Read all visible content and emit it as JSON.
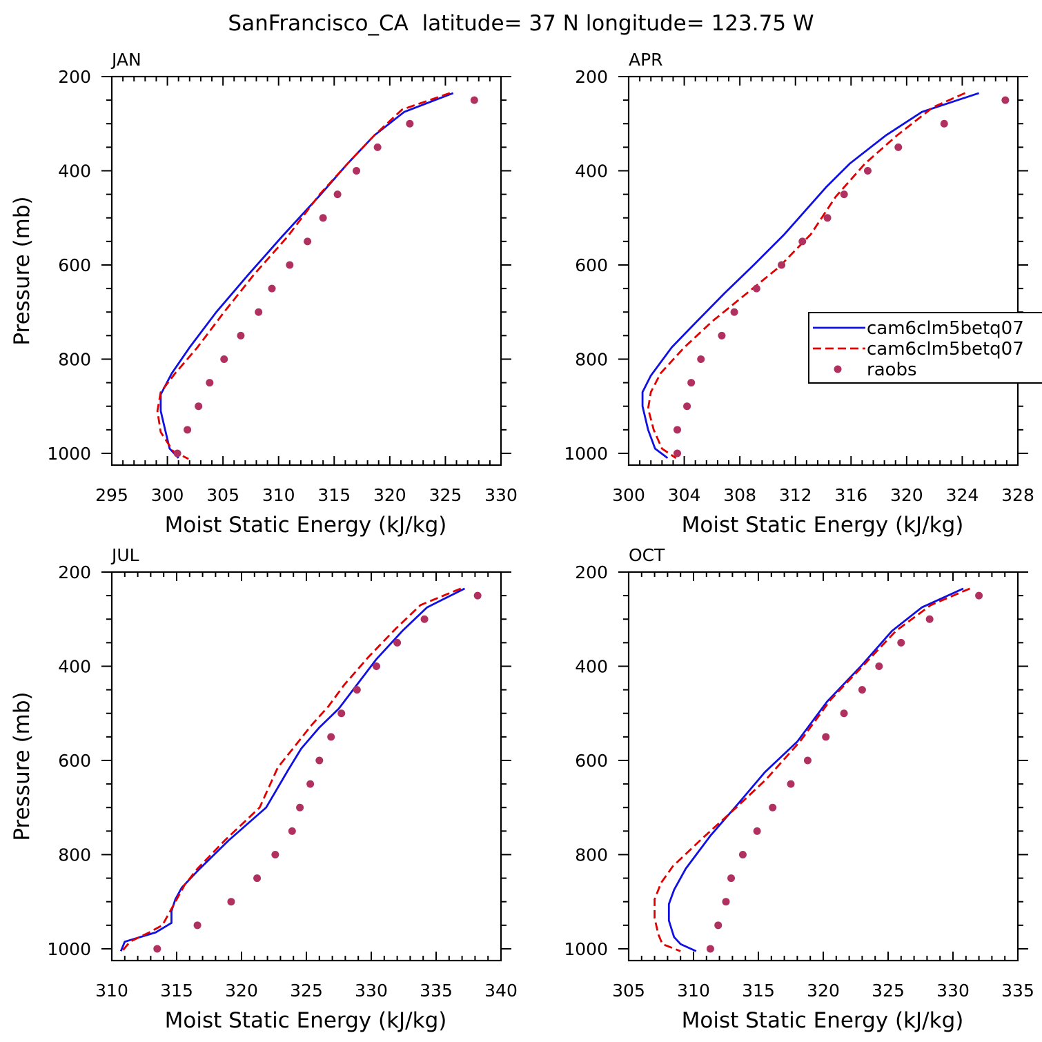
{
  "title": "SanFrancisco_CA  latitude= 37 N longitude= 123.75 W",
  "legend": {
    "entries": [
      {
        "label": "cam6clm5betq07",
        "color": "#1010e0",
        "style": "solid"
      },
      {
        "label": "cam6clm5betq07",
        "color": "#e00000",
        "style": "dashed"
      },
      {
        "label": "raobs",
        "color": "#b03060",
        "style": "dot"
      }
    ]
  },
  "chart_data": [
    {
      "type": "line",
      "panel": "JAN",
      "xlabel": "Moist Static Energy (kJ/kg)",
      "ylabel": "Pressure (mb)",
      "xlim": [
        295,
        330
      ],
      "xticks": [
        295,
        300,
        305,
        310,
        315,
        320,
        325,
        330
      ],
      "ylim": [
        1025,
        200
      ],
      "yticks": [
        200,
        400,
        600,
        800,
        1000
      ],
      "series": [
        {
          "name": "cam6clm5betq07",
          "color": "#1010e0",
          "style": "solid",
          "x": [
            325.7,
            321.3,
            318.6,
            316.2,
            313.8,
            310.3,
            307.3,
            304.4,
            302.0,
            300.4,
            299.4,
            299.4,
            299.8,
            300.2,
            301.0
          ],
          "y": [
            235,
            275,
            325,
            385,
            450,
            540,
            620,
            700,
            775,
            830,
            875,
            910,
            950,
            990,
            1010
          ]
        },
        {
          "name": "cam6clm5betq07",
          "color": "#e00000",
          "style": "dashed",
          "x": [
            325.4,
            321.1,
            318.6,
            316.2,
            313.7,
            310.8,
            307.8,
            305.1,
            302.7,
            300.7,
            299.4,
            299.1,
            299.4,
            300.5,
            301.9
          ],
          "y": [
            235,
            270,
            325,
            385,
            450,
            540,
            620,
            700,
            775,
            830,
            870,
            910,
            955,
            995,
            1012
          ]
        },
        {
          "name": "raobs",
          "color": "#b03060",
          "style": "dot",
          "x": [
            327.6,
            321.8,
            318.9,
            317.0,
            315.3,
            314.0,
            312.6,
            311.0,
            309.4,
            308.2,
            306.6,
            305.1,
            303.8,
            302.8,
            301.8,
            300.9
          ],
          "y": [
            250,
            300,
            350,
            400,
            450,
            500,
            550,
            600,
            650,
            700,
            750,
            800,
            850,
            900,
            950,
            1000
          ]
        }
      ]
    },
    {
      "type": "line",
      "panel": "APR",
      "xlabel": "Moist Static Energy (kJ/kg)",
      "ylabel": "",
      "xlim": [
        300,
        328
      ],
      "xticks": [
        300,
        304,
        308,
        312,
        316,
        320,
        324,
        328
      ],
      "ylim": [
        1025,
        200
      ],
      "yticks": [
        200,
        400,
        600,
        800,
        1000
      ],
      "series": [
        {
          "name": "cam6clm5betq07",
          "color": "#1010e0",
          "style": "solid",
          "x": [
            325.2,
            321.1,
            318.5,
            315.9,
            314.2,
            311.2,
            309.0,
            306.9,
            304.9,
            303.1,
            301.6,
            301.0,
            301.0,
            301.4,
            301.9,
            302.8
          ],
          "y": [
            235,
            275,
            325,
            385,
            435,
            535,
            600,
            660,
            720,
            775,
            835,
            870,
            900,
            950,
            990,
            1010
          ]
        },
        {
          "name": "cam6clm5betq07",
          "color": "#e00000",
          "style": "dashed",
          "x": [
            324.2,
            321.9,
            319.3,
            317.0,
            314.9,
            313.1,
            310.8,
            308.3,
            306.0,
            304.0,
            302.3,
            301.6,
            301.4,
            301.8,
            302.4,
            303.4
          ],
          "y": [
            235,
            265,
            325,
            385,
            455,
            535,
            605,
            665,
            720,
            775,
            830,
            870,
            905,
            950,
            990,
            1010
          ]
        },
        {
          "name": "raobs",
          "color": "#b03060",
          "style": "dot",
          "x": [
            327.1,
            322.7,
            319.4,
            317.2,
            315.5,
            314.3,
            312.5,
            311.0,
            309.2,
            307.6,
            306.7,
            305.2,
            304.5,
            304.2,
            303.5,
            303.5
          ],
          "y": [
            250,
            300,
            350,
            400,
            450,
            500,
            550,
            600,
            650,
            700,
            750,
            800,
            850,
            900,
            950,
            1000
          ]
        }
      ]
    },
    {
      "type": "line",
      "panel": "JUL",
      "xlabel": "Moist Static Energy (kJ/kg)",
      "ylabel": "Pressure (mb)",
      "xlim": [
        310,
        340
      ],
      "xticks": [
        310,
        315,
        320,
        325,
        330,
        335,
        340
      ],
      "ylim": [
        1025,
        200
      ],
      "yticks": [
        200,
        400,
        600,
        800,
        1000
      ],
      "series": [
        {
          "name": "cam6clm5betq07",
          "color": "#1010e0",
          "style": "solid",
          "x": [
            337.2,
            334.3,
            332.4,
            330.4,
            328.6,
            327.5,
            326.0,
            324.6,
            323.6,
            321.9,
            319.0,
            316.6,
            315.4,
            314.9,
            314.6,
            314.6,
            313.4,
            311.0,
            310.7
          ],
          "y": [
            235,
            275,
            325,
            385,
            450,
            490,
            530,
            575,
            620,
            700,
            770,
            835,
            870,
            895,
            920,
            945,
            965,
            985,
            1005
          ]
        },
        {
          "name": "cam6clm5betq07",
          "color": "#e00000",
          "style": "dashed",
          "x": [
            336.9,
            333.8,
            331.9,
            329.8,
            327.9,
            326.7,
            325.4,
            324.1,
            322.8,
            321.4,
            318.7,
            316.6,
            315.6,
            315.1,
            314.4,
            313.9,
            312.9,
            311.4,
            310.8
          ],
          "y": [
            235,
            270,
            320,
            380,
            440,
            485,
            525,
            570,
            615,
            700,
            770,
            830,
            865,
            890,
            925,
            950,
            965,
            985,
            1005
          ]
        },
        {
          "name": "raobs",
          "color": "#b03060",
          "style": "dot",
          "x": [
            338.2,
            334.1,
            332.0,
            330.4,
            328.9,
            327.7,
            326.9,
            326.0,
            325.3,
            324.5,
            323.9,
            322.6,
            321.2,
            319.2,
            316.6,
            313.5
          ],
          "y": [
            250,
            300,
            350,
            400,
            450,
            500,
            550,
            600,
            650,
            700,
            750,
            800,
            850,
            900,
            950,
            1000
          ]
        }
      ]
    },
    {
      "type": "line",
      "panel": "OCT",
      "xlabel": "Moist Static Energy (kJ/kg)",
      "ylabel": "",
      "xlim": [
        305,
        335
      ],
      "xticks": [
        305,
        310,
        315,
        320,
        325,
        330,
        335
      ],
      "ylim": [
        1025,
        200
      ],
      "yticks": [
        200,
        400,
        600,
        800,
        1000
      ],
      "series": [
        {
          "name": "cam6clm5betq07",
          "color": "#1010e0",
          "style": "solid",
          "x": [
            330.8,
            327.6,
            325.3,
            322.9,
            320.3,
            318.0,
            315.5,
            313.5,
            311.3,
            309.4,
            308.5,
            308.1,
            308.1,
            308.5,
            309.0,
            310.2
          ],
          "y": [
            235,
            275,
            325,
            400,
            475,
            560,
            625,
            690,
            760,
            830,
            875,
            905,
            940,
            975,
            990,
            1005
          ]
        },
        {
          "name": "cam6clm5betq07",
          "color": "#e00000",
          "style": "dashed",
          "x": [
            331.3,
            328.3,
            325.6,
            323.2,
            320.6,
            318.2,
            315.6,
            313.3,
            310.5,
            308.4,
            307.5,
            307.0,
            307.0,
            307.3,
            307.6,
            309.0
          ],
          "y": [
            235,
            270,
            325,
            395,
            470,
            560,
            640,
            700,
            770,
            825,
            860,
            895,
            935,
            970,
            990,
            1005
          ]
        },
        {
          "name": "raobs",
          "color": "#b03060",
          "style": "dot",
          "x": [
            332.0,
            328.2,
            326.0,
            324.3,
            323.0,
            321.6,
            320.2,
            318.8,
            317.5,
            316.1,
            314.9,
            313.8,
            312.9,
            312.5,
            311.9,
            311.3
          ],
          "y": [
            250,
            300,
            350,
            400,
            450,
            500,
            550,
            600,
            650,
            700,
            750,
            800,
            850,
            900,
            950,
            1000
          ]
        }
      ]
    }
  ]
}
